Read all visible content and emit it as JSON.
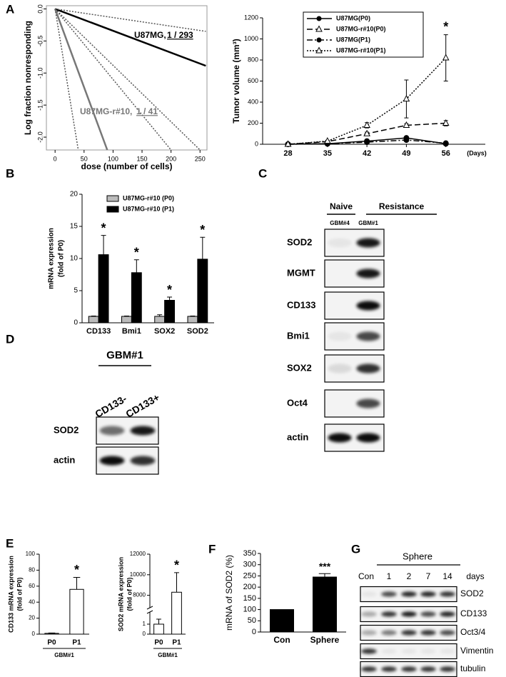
{
  "chart_data": [
    {
      "type": "line",
      "panel": "A",
      "ylabel": "Log fraction nonresponding",
      "xlabel": "dose (number of cells)",
      "xlim": [
        -15,
        262
      ],
      "ylim": [
        -2.2,
        0.05
      ],
      "xticks": [
        0,
        50,
        100,
        150,
        200,
        250
      ],
      "yticks": [
        {
          "value": 0,
          "label": "0.0"
        },
        -0.5,
        {
          "value": -1,
          "label": "-1.0"
        },
        -1.5,
        {
          "value": -2,
          "label": "-2.0"
        }
      ],
      "series": [
        {
          "color": "#000000",
          "style": "solid",
          "x": [
            0,
            260
          ],
          "values": [
            0,
            -0.887
          ]
        },
        {
          "color": "#777777",
          "style": "solid",
          "x": [
            0,
            90
          ],
          "values": [
            0,
            -2.2
          ]
        },
        {
          "color": "#555555",
          "style": "dotted",
          "x": [
            0,
            260
          ],
          "values": [
            0,
            -0.35
          ]
        },
        {
          "color": "#555555",
          "style": "dotted",
          "x": [
            0,
            250
          ],
          "values": [
            0,
            -2.2
          ]
        },
        {
          "color": "#555555",
          "style": "dotted",
          "x": [
            0,
            200
          ],
          "values": [
            0,
            -2.2
          ]
        },
        {
          "color": "#555555",
          "style": "dotted",
          "x": [
            0,
            40
          ],
          "values": [
            0,
            -2.2
          ]
        }
      ],
      "annotations": [
        "U87MG,",
        "1 / 293",
        "U87MG-r#10,",
        "1 / 41"
      ]
    },
    {
      "type": "line",
      "ylabel": "Tumor volume (mm³)",
      "xlabel": "(Days)",
      "x": [
        28,
        35,
        42,
        49,
        56
      ],
      "xlim": [
        23.5,
        63
      ],
      "xticks": [
        28,
        35,
        42,
        49,
        56
      ],
      "ylim": [
        0,
        1200
      ],
      "yticks": [
        0,
        200,
        400,
        600,
        800,
        1000,
        1200
      ],
      "legend": "upper left",
      "series": [
        {
          "name": "U87MG(P0)",
          "color": "#000000",
          "style": "solid",
          "marker": "circle",
          "values": [
            0,
            5,
            30,
            60,
            5
          ],
          "errors": [
            0,
            3,
            10,
            10,
            5
          ]
        },
        {
          "name": "U87MG-r#10(P0)",
          "color": "#000000",
          "style": "dashed",
          "marker": "triangle",
          "values": [
            0,
            25,
            100,
            180,
            200
          ],
          "errors": [
            0,
            5,
            15,
            15,
            25
          ]
        },
        {
          "name": "U87MG(P1)",
          "color": "#000000",
          "style": "dashdot",
          "marker": "circle",
          "values": [
            0,
            5,
            20,
            40,
            10
          ],
          "errors": [
            0,
            3,
            5,
            8,
            5
          ]
        },
        {
          "name": "U87MG-r#10(P1)",
          "color": "#000000",
          "style": "dotted",
          "marker": "triangle",
          "values": [
            0,
            30,
            180,
            430,
            820
          ],
          "errors": [
            0,
            8,
            25,
            180,
            220
          ]
        }
      ],
      "annotations": [
        "*"
      ]
    },
    {
      "type": "bar",
      "panel": "B",
      "ylabel": [
        "mRNA expression",
        "(fold of P0)"
      ],
      "categories": [
        "CD133",
        "Bmi1",
        "SOX2",
        "SOD2"
      ],
      "ylim": [
        0,
        20
      ],
      "yticks": [
        0,
        5,
        10,
        15,
        20
      ],
      "legend": "upper left",
      "series": [
        {
          "name": "U87MG-r#10 (P0)",
          "color": "#bbbbbb",
          "values": [
            1,
            1,
            1,
            1
          ],
          "errors": [
            0.05,
            0.05,
            0.25,
            0.05
          ]
        },
        {
          "name": "U87MG-r#10 (P1)",
          "color": "#000000",
          "values": [
            10.6,
            7.8,
            3.5,
            9.9
          ],
          "errors": [
            3,
            2,
            0.5,
            3.4
          ]
        }
      ],
      "annotations": [
        "*",
        "*",
        "*",
        "*"
      ]
    },
    {
      "type": "bar",
      "panel": "E",
      "ylabel": [
        "CD133 mRNA expression",
        "(fold of P0)"
      ],
      "xlabel": "GBM#1",
      "categories": [
        "P0",
        "P1"
      ],
      "values": [
        1,
        56
      ],
      "errors": [
        0.5,
        15
      ],
      "color": "#ffffff",
      "ylim": [
        0,
        100
      ],
      "yticks": [
        0,
        20,
        40,
        60,
        80,
        100
      ],
      "annotations": [
        "*"
      ]
    },
    {
      "type": "bar",
      "ylabel": [
        "SOD2 mRNA expression",
        "(fold of P0)"
      ],
      "xlabel": "GBM#1",
      "categories": [
        "P0",
        "P1"
      ],
      "values": [
        1,
        8300
      ],
      "errors": [
        0.5,
        1900
      ],
      "color": "#ffffff",
      "ylim": [
        0,
        12000
      ],
      "ybreak": [
        2,
        7000
      ],
      "yticks": [
        0,
        1,
        8000,
        10000,
        12000
      ],
      "annotations": [
        "*"
      ]
    },
    {
      "type": "bar",
      "panel": "F",
      "ylabel": "mRNA of SOD2 (%)",
      "categories": [
        "Con",
        "Sphere"
      ],
      "values": [
        100,
        245
      ],
      "errors": [
        null,
        15
      ],
      "color": "#000000",
      "ylim": [
        0,
        350
      ],
      "yticks": [
        0,
        50,
        100,
        150,
        200,
        250,
        300,
        350
      ],
      "annotations": [
        "***"
      ]
    }
  ],
  "blots": [
    {
      "panel": "C",
      "groups": [
        "Naive",
        "Resistance"
      ],
      "lanes": [
        "GBM#4",
        "GBM#1"
      ],
      "rows": [
        "SOD2",
        "MGMT",
        "CD133",
        "Bmi1",
        "SOX2",
        "Oct4",
        "actin"
      ]
    },
    {
      "panel": "D",
      "title": "GBM#1",
      "lanes": [
        "CD133-",
        "CD133+"
      ],
      "rows": [
        "SOD2",
        "actin"
      ]
    },
    {
      "panel": "G",
      "title": "Sphere",
      "lanes": [
        "Con",
        "1",
        "2",
        "7",
        "14"
      ],
      "lane_unit": "days",
      "rows": [
        "SOD2",
        "CD133",
        "Oct3/4",
        "Vimentin",
        "tubulin"
      ]
    }
  ]
}
